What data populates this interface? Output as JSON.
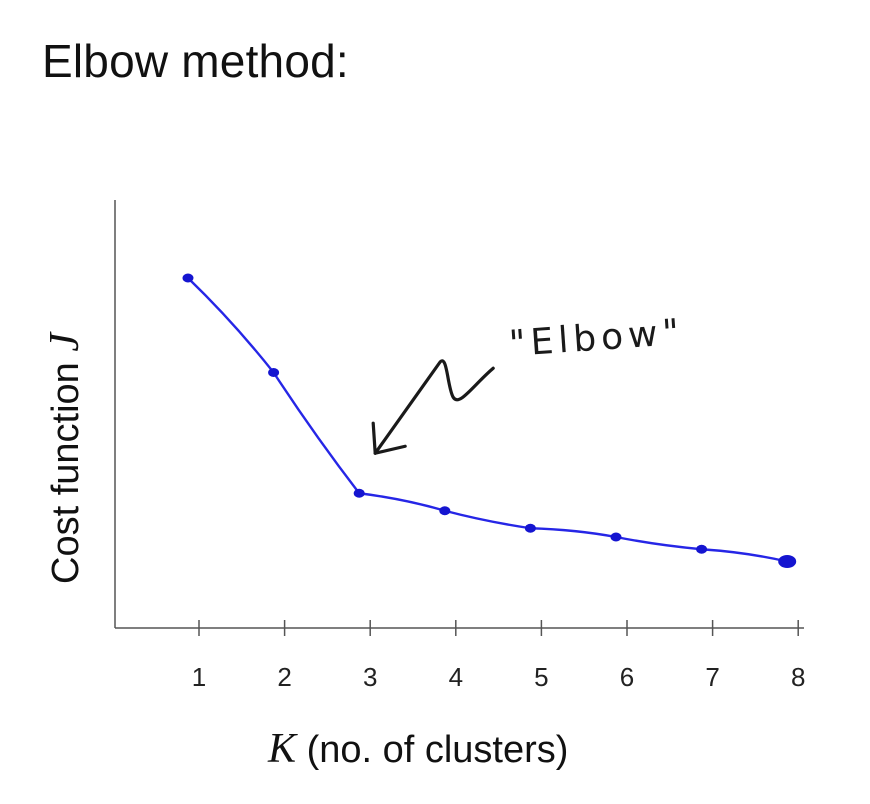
{
  "slide": {
    "title": "Elbow method:"
  },
  "chart_data": {
    "type": "line",
    "title": "Elbow method:",
    "xlabel_var": "K",
    "xlabel_rest": " (no. of clusters)",
    "ylabel_text": "Cost function ",
    "ylabel_var": "J",
    "x": [
      1,
      2,
      3,
      4,
      5,
      6,
      7,
      8
    ],
    "series": [
      {
        "values": [
          10.0,
          7.3,
          3.85,
          3.35,
          2.85,
          2.6,
          2.25,
          1.9
        ]
      }
    ],
    "xlim": [
      0,
      8
    ],
    "ylim": [
      0,
      10.8
    ],
    "y_ticks_labeled": false,
    "grid": false,
    "line_color": "#2626e6",
    "marker_color": "#1515d0",
    "annotation": {
      "text": "\"Elbow\"",
      "points_to_x": 3
    }
  }
}
